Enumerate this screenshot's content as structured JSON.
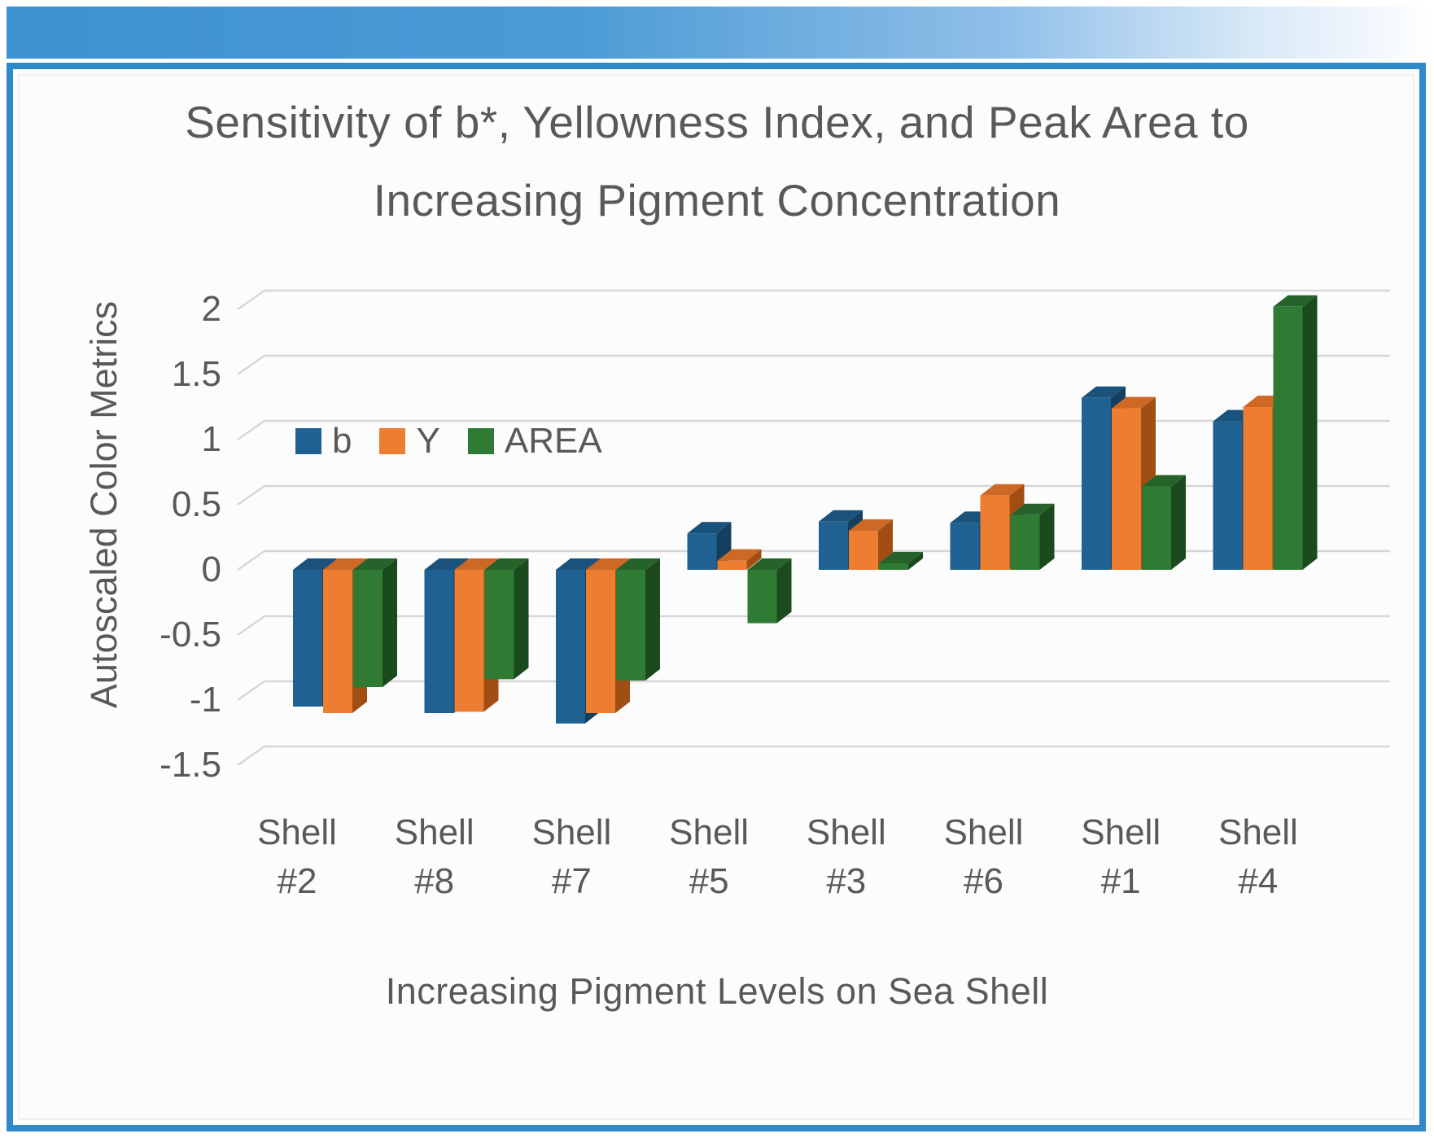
{
  "page": {
    "banner_gradient_left": "#3D92D0",
    "banner_gradient_right": "#FDFEFF",
    "panel_border_color": "#2E8ACB",
    "panel_background": "#FCFCFC",
    "text_color": "#595959"
  },
  "chart_data": {
    "type": "bar",
    "style": "3d-clustered-column",
    "title": "Sensitivity of b*, Yellowness Index, and Peak Area to Increasing Pigment Concentration",
    "title_lines": [
      "Sensitivity of b*, Yellowness Index, and Peak Area to",
      "Increasing Pigment Concentration"
    ],
    "xlabel": "Increasing Pigment Levels on Sea Shell",
    "ylabel": "Autoscaled Color Metrics",
    "categories": [
      "Shell #2",
      "Shell #8",
      "Shell #7",
      "Shell #5",
      "Shell #3",
      "Shell #6",
      "Shell #1",
      "Shell #4"
    ],
    "series": [
      {
        "name": "b",
        "color": "#1F6291",
        "color_top": "#1A527C",
        "color_side": "#153F60",
        "values": [
          -1.05,
          -1.1,
          -1.18,
          0.28,
          0.37,
          0.36,
          1.32,
          1.14
        ]
      },
      {
        "name": "Y",
        "color": "#ED7D31",
        "color_top": "#CE6825",
        "color_side": "#A14E15",
        "values": [
          -1.1,
          -1.09,
          -1.1,
          0.07,
          0.3,
          0.57,
          1.24,
          1.25
        ]
      },
      {
        "name": "AREA",
        "color": "#2F7B34",
        "color_top": "#26632A",
        "color_side": "#1B4A1F",
        "values": [
          -0.9,
          -0.84,
          -0.85,
          -0.41,
          0.05,
          0.42,
          0.64,
          2.02
        ]
      }
    ],
    "y_ticks": [
      "2",
      "1.5",
      "1",
      "0.5",
      "0",
      "-0.5",
      "-1",
      "-1.5"
    ],
    "ylim": [
      -1.5,
      2
    ],
    "grid": true,
    "gridline_color": "#D7D7D7",
    "legend_position": "inside-top-left"
  }
}
